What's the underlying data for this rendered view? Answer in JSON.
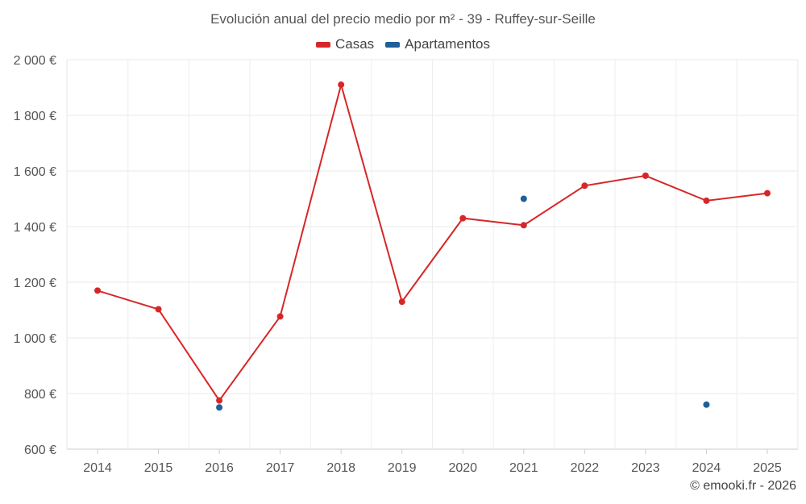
{
  "chart_data": {
    "type": "line",
    "title": "Evolución anual del precio medio por m² - 39 - Ruffey-sur-Seille",
    "categories": [
      "2014",
      "2015",
      "2016",
      "2017",
      "2018",
      "2019",
      "2020",
      "2021",
      "2022",
      "2023",
      "2024",
      "2025"
    ],
    "y_tick_labels": [
      "600 €",
      "800 €",
      "1 000 €",
      "1 200 €",
      "1 400 €",
      "1 600 €",
      "1 800 €",
      "2 000 €"
    ],
    "y_ticks": [
      600,
      800,
      1000,
      1200,
      1400,
      1600,
      1800,
      2000
    ],
    "ylim": [
      600,
      2000
    ],
    "grid": true,
    "legend_position": "top-center",
    "series": [
      {
        "name": "Casas",
        "color": "#d62728",
        "values": [
          1170,
          1103,
          775,
          1077,
          1910,
          1130,
          1430,
          1405,
          1547,
          1583,
          1493,
          1520
        ]
      },
      {
        "name": "Apartamentos",
        "color": "#1f5f9a",
        "values": [
          null,
          null,
          750,
          null,
          null,
          null,
          null,
          1500,
          null,
          null,
          760,
          null
        ]
      }
    ]
  },
  "credit": "© emooki.fr - 2026"
}
